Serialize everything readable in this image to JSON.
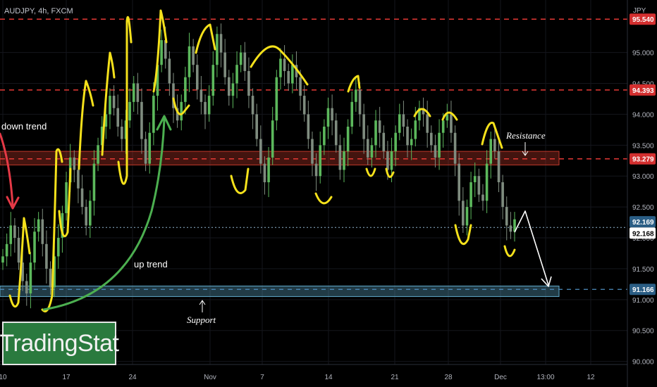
{
  "header": {
    "symbol": "AUDJPY, 4h, FXCM",
    "currency": "JPY"
  },
  "logo": {
    "text": "TradingStat"
  },
  "chart_data": {
    "type": "candlestick",
    "symbol": "AUDJPY",
    "timeframe": "4h",
    "source": "FXCM",
    "y_range": [
      89.95,
      95.85
    ],
    "y_ticks": [
      "95.000",
      "94.500",
      "94.000",
      "93.500",
      "93.000",
      "92.500",
      "92.000",
      "91.500",
      "91.000",
      "90.500",
      "90.000"
    ],
    "x_ticks": [
      "10",
      "17",
      "24",
      "Nov",
      "7",
      "14",
      "21",
      "28",
      "Dec",
      "13:00",
      "12"
    ],
    "price_tags": [
      {
        "label": "95.540",
        "color": "#d32f2f"
      },
      {
        "label": "94.393",
        "color": "#d32f2f"
      },
      {
        "label": "93.279",
        "color": "#d32f2f"
      },
      {
        "label": "92.169",
        "color": "#2a5d84"
      },
      {
        "label": "92.168",
        "color": "#ffffff"
      },
      {
        "label": "91.166",
        "color": "#2a5d84"
      }
    ],
    "levels": {
      "resistance_lines": [
        95.54,
        94.393,
        93.279
      ],
      "current_line": 92.168,
      "support_line": 91.166
    },
    "zones": [
      {
        "name": "Resistance",
        "from": 93.18,
        "to": 93.4,
        "color": "#c0392b"
      },
      {
        "name": "Support",
        "from": 91.05,
        "to": 91.22,
        "color": "#5fa8c9"
      }
    ],
    "annotations": [
      {
        "text": "down trend",
        "color": "#e53946"
      },
      {
        "text": "up trend",
        "color": "#4caf50"
      },
      {
        "text": "Resistance"
      },
      {
        "text": "Support"
      }
    ],
    "candles_close": [
      91.7,
      91.9,
      92.2,
      92.0,
      91.6,
      91.3,
      91.1,
      91.6,
      92.1,
      92.3,
      91.9,
      91.5,
      91.2,
      91.7,
      92.0,
      92.4,
      92.9,
      93.3,
      93.1,
      92.8,
      92.5,
      92.2,
      92.6,
      93.2,
      93.5,
      93.8,
      94.0,
      94.3,
      94.1,
      93.8,
      93.6,
      93.9,
      94.2,
      94.5,
      94.2,
      93.6,
      93.2,
      93.7,
      94.3,
      94.8,
      95.2,
      94.9,
      94.5,
      94.1,
      93.9,
      94.2,
      94.6,
      95.1,
      94.8,
      94.4,
      94.2,
      94.0,
      94.3,
      94.8,
      95.3,
      95.0,
      94.6,
      94.3,
      94.5,
      94.8,
      95.0,
      94.7,
      94.3,
      94.0,
      93.6,
      93.2,
      92.9,
      93.3,
      93.9,
      94.6,
      94.9,
      94.7,
      94.5,
      94.8,
      94.6,
      94.3,
      94.0,
      93.6,
      93.2,
      93.0,
      93.5,
      93.8,
      94.1,
      93.9,
      93.5,
      93.1,
      93.4,
      93.8,
      94.2,
      94.4,
      94.0,
      93.6,
      93.3,
      93.5,
      93.9,
      93.7,
      93.4,
      93.1,
      93.4,
      93.7,
      94.0,
      93.8,
      93.5,
      93.6,
      93.9,
      94.1,
      94.0,
      93.7,
      93.5,
      93.3,
      93.7,
      93.9,
      94.0,
      93.7,
      93.2,
      92.6,
      92.2,
      92.5,
      92.9,
      93.0,
      92.7,
      92.6,
      93.2,
      93.6,
      93.4,
      92.9,
      92.5,
      92.2,
      92.1,
      92.3
    ]
  }
}
